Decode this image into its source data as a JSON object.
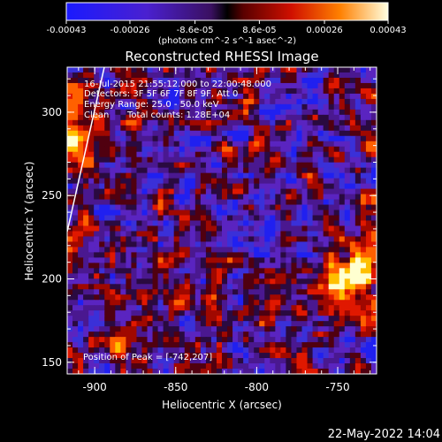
{
  "chart_data": {
    "type": "heatmap",
    "title": "Reconstructed RHESSI Image",
    "xlabel": "Heliocentric X (arcsec)",
    "ylabel": "Heliocentric Y (arcsec)",
    "xlim": [
      -917,
      -726
    ],
    "ylim": [
      143,
      327
    ],
    "x_ticks": [
      -900,
      -850,
      -800,
      -750
    ],
    "y_ticks": [
      150,
      200,
      250,
      300
    ],
    "x_tick_labels": [
      "-900",
      "-850",
      "-800",
      "-750"
    ],
    "y_tick_labels": [
      "150",
      "200",
      "250",
      "300"
    ],
    "colorbar": {
      "range": [
        -0.00043,
        0.00043
      ],
      "ticks": [
        -0.00043,
        -0.00026,
        -8.6e-05,
        8.6e-05,
        0.00026,
        0.00043
      ],
      "tick_labels": [
        "-0.00043",
        "-0.00026",
        "-8.6e-05",
        "8.6e-05",
        "0.00026",
        "0.00043"
      ],
      "units": "(photons cm^-2 s^-1 asec^-2)"
    },
    "annotations": {
      "time_range": "16-Jul-2015 21:55:12.000 to 22:00:48.000",
      "detectors": "Detectors: 3F 5F 6F 7F 8F 9F, Att 0",
      "energy_range": "Energy Range: 25.0 - 50.0 keV",
      "algorithm": "Clean",
      "total_counts": "Total counts: 1.28E+04",
      "peak_position": "Position of Peak = [-742,207]"
    },
    "peak": [
      -742,
      207
    ],
    "grid": false,
    "legend": "none"
  },
  "footer": {
    "timestamp": "22-May-2022 14:04"
  }
}
